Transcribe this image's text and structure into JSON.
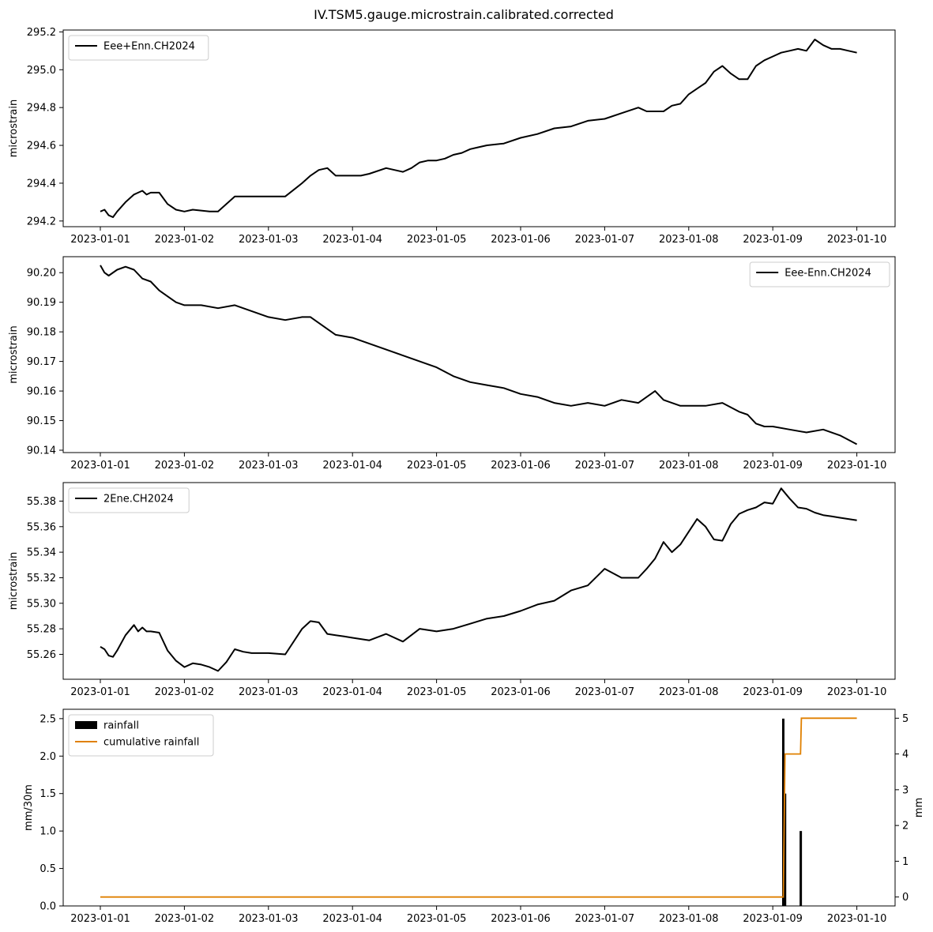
{
  "figure": {
    "title": "IV.TSM5.gauge.microstrain.calibrated.corrected"
  },
  "chart_data": [
    {
      "type": "line",
      "ylabel": "microstrain",
      "xlim": [
        "2022-12-31T10:30",
        "2023-01-10T11:00"
      ],
      "ylim": [
        294.17,
        295.21
      ],
      "xticks": [
        "2023-01-01",
        "2023-01-02",
        "2023-01-03",
        "2023-01-04",
        "2023-01-05",
        "2023-01-06",
        "2023-01-07",
        "2023-01-08",
        "2023-01-09",
        "2023-01-10"
      ],
      "yticks": [
        "294.2",
        "294.4",
        "294.6",
        "294.8",
        "295.0",
        "295.2"
      ],
      "legend_position": "upper left",
      "series": [
        {
          "name": "Eee+Enn.CH2024",
          "color": "#000000",
          "x": [
            0,
            0.05,
            0.1,
            0.15,
            0.2,
            0.3,
            0.4,
            0.45,
            0.5,
            0.55,
            0.6,
            0.7,
            0.8,
            0.9,
            1.0,
            1.1,
            1.2,
            1.3,
            1.4,
            1.5,
            1.6,
            1.7,
            1.8,
            1.9,
            2.0,
            2.2,
            2.4,
            2.5,
            2.6,
            2.7,
            2.8,
            2.9,
            3.0,
            3.1,
            3.2,
            3.4,
            3.6,
            3.7,
            3.8,
            3.9,
            4.0,
            4.1,
            4.2,
            4.3,
            4.4,
            4.5,
            4.6,
            4.8,
            5.0,
            5.2,
            5.4,
            5.6,
            5.8,
            6.0,
            6.2,
            6.4,
            6.5,
            6.6,
            6.7,
            6.8,
            6.9,
            7.0,
            7.1,
            7.2,
            7.3,
            7.4,
            7.5,
            7.6,
            7.7,
            7.8,
            7.9,
            8.0,
            8.1,
            8.2,
            8.3,
            8.4,
            8.5,
            8.6,
            8.7,
            8.8,
            8.9,
            9.0
          ],
          "y": [
            294.25,
            294.26,
            294.23,
            294.22,
            294.25,
            294.3,
            294.34,
            294.35,
            294.36,
            294.34,
            294.35,
            294.35,
            294.29,
            294.26,
            294.25,
            294.26,
            294.255,
            294.25,
            294.25,
            294.29,
            294.33,
            294.33,
            294.33,
            294.33,
            294.33,
            294.33,
            294.4,
            294.44,
            294.47,
            294.48,
            294.44,
            294.44,
            294.44,
            294.44,
            294.45,
            294.48,
            294.46,
            294.48,
            294.51,
            294.52,
            294.52,
            294.53,
            294.55,
            294.56,
            294.58,
            294.59,
            294.6,
            294.61,
            294.64,
            294.66,
            294.69,
            294.7,
            294.73,
            294.74,
            294.77,
            294.8,
            294.78,
            294.78,
            294.78,
            294.81,
            294.82,
            294.87,
            294.9,
            294.93,
            294.99,
            295.02,
            294.98,
            294.95,
            294.95,
            295.02,
            295.05,
            295.07,
            295.09,
            295.1,
            295.11,
            295.1,
            295.16,
            295.13,
            295.11,
            295.11,
            295.1,
            295.09
          ]
        }
      ]
    },
    {
      "type": "line",
      "ylabel": "microstrain",
      "xlim": [
        "2022-12-31T10:30",
        "2023-01-10T11:00"
      ],
      "ylim": [
        90.1392,
        90.2054
      ],
      "xticks": [
        "2023-01-01",
        "2023-01-02",
        "2023-01-03",
        "2023-01-04",
        "2023-01-05",
        "2023-01-06",
        "2023-01-07",
        "2023-01-08",
        "2023-01-09",
        "2023-01-10"
      ],
      "yticks": [
        "90.14",
        "90.15",
        "90.16",
        "90.17",
        "90.18",
        "90.19",
        "90.20"
      ],
      "legend_position": "upper right",
      "series": [
        {
          "name": "Eee-Enn.CH2024",
          "color": "#000000",
          "x": [
            0,
            0.05,
            0.1,
            0.2,
            0.3,
            0.4,
            0.5,
            0.6,
            0.7,
            0.8,
            0.9,
            1.0,
            1.2,
            1.4,
            1.6,
            1.8,
            2.0,
            2.2,
            2.4,
            2.5,
            2.6,
            2.8,
            3.0,
            3.2,
            3.4,
            3.6,
            3.8,
            4.0,
            4.2,
            4.4,
            4.6,
            4.8,
            5.0,
            5.2,
            5.4,
            5.6,
            5.8,
            6.0,
            6.2,
            6.4,
            6.5,
            6.6,
            6.7,
            6.8,
            6.9,
            7.0,
            7.2,
            7.4,
            7.6,
            7.7,
            7.8,
            7.9,
            8.0,
            8.2,
            8.4,
            8.6,
            8.8,
            9.0
          ],
          "y": [
            90.2025,
            90.2,
            90.199,
            90.201,
            90.202,
            90.201,
            90.198,
            90.197,
            90.194,
            90.192,
            90.19,
            90.189,
            90.189,
            90.188,
            90.189,
            90.187,
            90.185,
            90.184,
            90.185,
            90.185,
            90.183,
            90.179,
            90.178,
            90.176,
            90.174,
            90.172,
            90.17,
            90.168,
            90.165,
            90.163,
            90.162,
            90.161,
            90.159,
            90.158,
            90.156,
            90.155,
            90.156,
            90.155,
            90.157,
            90.156,
            90.158,
            90.16,
            90.157,
            90.156,
            90.155,
            90.155,
            90.155,
            90.156,
            90.153,
            90.152,
            90.149,
            90.148,
            90.148,
            90.147,
            90.146,
            90.147,
            90.145,
            90.142
          ]
        }
      ]
    },
    {
      "type": "line",
      "ylabel": "microstrain",
      "xlim": [
        "2022-12-31T10:30",
        "2023-01-10T11:00"
      ],
      "ylim": [
        55.2405,
        55.3945
      ],
      "xticks": [
        "2023-01-01",
        "2023-01-02",
        "2023-01-03",
        "2023-01-04",
        "2023-01-05",
        "2023-01-06",
        "2023-01-07",
        "2023-01-08",
        "2023-01-09",
        "2023-01-10"
      ],
      "yticks": [
        "55.26",
        "55.28",
        "55.30",
        "55.32",
        "55.34",
        "55.36",
        "55.38"
      ],
      "legend_position": "upper left",
      "series": [
        {
          "name": "2Ene.CH2024",
          "color": "#000000",
          "x": [
            0,
            0.05,
            0.1,
            0.15,
            0.2,
            0.3,
            0.4,
            0.45,
            0.5,
            0.55,
            0.6,
            0.7,
            0.8,
            0.9,
            1.0,
            1.1,
            1.2,
            1.3,
            1.4,
            1.5,
            1.6,
            1.7,
            1.8,
            1.9,
            2.0,
            2.2,
            2.4,
            2.5,
            2.6,
            2.7,
            2.8,
            2.9,
            3.0,
            3.2,
            3.4,
            3.6,
            3.8,
            4.0,
            4.2,
            4.4,
            4.6,
            4.8,
            5.0,
            5.2,
            5.4,
            5.6,
            5.8,
            6.0,
            6.2,
            6.4,
            6.5,
            6.6,
            6.7,
            6.8,
            6.9,
            7.0,
            7.1,
            7.2,
            7.3,
            7.4,
            7.5,
            7.6,
            7.7,
            7.8,
            7.9,
            8.0,
            8.1,
            8.2,
            8.3,
            8.4,
            8.5,
            8.6,
            8.7,
            8.8,
            8.9,
            9.0
          ],
          "y": [
            55.266,
            55.264,
            55.259,
            55.258,
            55.263,
            55.275,
            55.283,
            55.278,
            55.281,
            55.278,
            55.278,
            55.277,
            55.263,
            55.255,
            55.25,
            55.253,
            55.252,
            55.25,
            55.247,
            55.254,
            55.264,
            55.262,
            55.261,
            55.261,
            55.261,
            55.26,
            55.28,
            55.286,
            55.285,
            55.276,
            55.275,
            55.274,
            55.273,
            55.271,
            55.276,
            55.27,
            55.28,
            55.278,
            55.28,
            55.284,
            55.288,
            55.29,
            55.294,
            55.299,
            55.302,
            55.31,
            55.314,
            55.327,
            55.32,
            55.32,
            55.327,
            55.335,
            55.348,
            55.34,
            55.346,
            55.356,
            55.366,
            55.36,
            55.35,
            55.349,
            55.362,
            55.37,
            55.373,
            55.375,
            55.379,
            55.378,
            55.39,
            55.382,
            55.375,
            55.374,
            55.371,
            55.369,
            55.368,
            55.367,
            55.366,
            55.365
          ]
        }
      ]
    },
    {
      "type": "bar+line",
      "ylabel": "mm/30m",
      "ylabel_right": "mm",
      "xlim": [
        "2022-12-31T10:30",
        "2023-01-10T11:00"
      ],
      "ylim": [
        0,
        2.625
      ],
      "ylim_right": [
        -0.25,
        5.25
      ],
      "xticks": [
        "2023-01-01",
        "2023-01-02",
        "2023-01-03",
        "2023-01-04",
        "2023-01-05",
        "2023-01-06",
        "2023-01-07",
        "2023-01-08",
        "2023-01-09",
        "2023-01-10"
      ],
      "yticks": [
        "0.0",
        "0.5",
        "1.0",
        "1.5",
        "2.0",
        "2.5"
      ],
      "yticks_right": [
        "0",
        "1",
        "2",
        "3",
        "4",
        "5"
      ],
      "legend_position": "upper left",
      "series": [
        {
          "name": "rainfall",
          "type": "bar",
          "color": "#000000",
          "x": [
            8.125,
            8.146,
            8.333
          ],
          "y": [
            2.5,
            1.5,
            1.0
          ]
        },
        {
          "name": "cumulative rainfall",
          "type": "line",
          "color": "#e08000",
          "x": [
            0,
            8.125,
            8.146,
            8.33,
            8.34,
            9.0
          ],
          "y": [
            0,
            0,
            4,
            4,
            5,
            5
          ]
        }
      ]
    }
  ]
}
